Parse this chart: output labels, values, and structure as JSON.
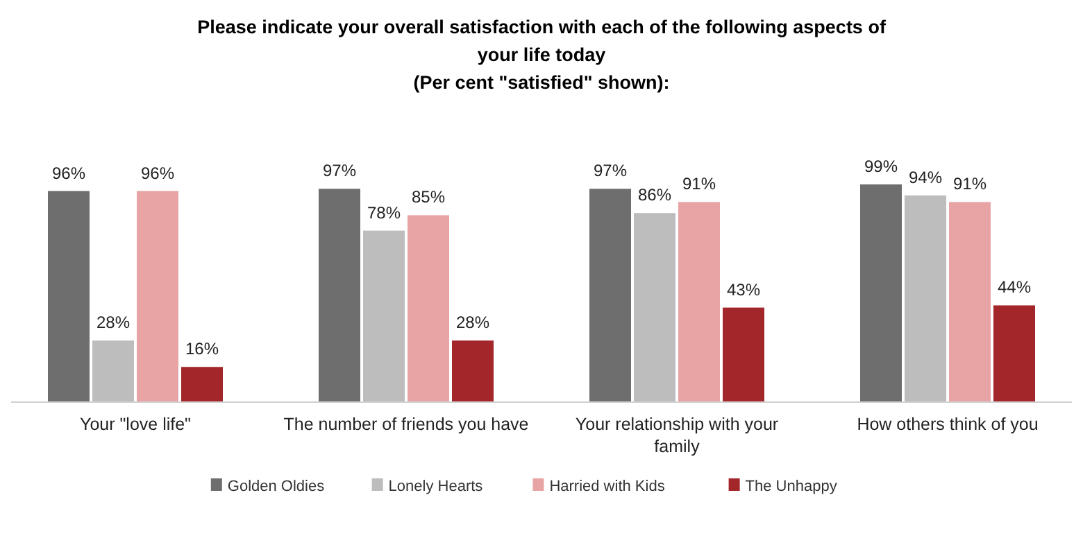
{
  "chart_data": {
    "type": "bar",
    "title": "Please indicate your overall satisfaction with each of the following aspects of your life today",
    "subtitle": "(Per cent \"satisfied\" shown):",
    "categories": [
      "Your \"love life\"",
      "The number of friends you have",
      "Your relationship with your family",
      "How others think of you"
    ],
    "series": [
      {
        "name": "Golden Oldies",
        "color": "#6e6e6e",
        "values": [
          96,
          97,
          97,
          99
        ],
        "value_labels": [
          "96%",
          "97%",
          "97%",
          "99%"
        ]
      },
      {
        "name": "Lonely Hearts",
        "color": "#bdbdbd",
        "values": [
          28,
          78,
          86,
          94
        ],
        "value_labels": [
          "28%",
          "78%",
          "86%",
          "94%"
        ]
      },
      {
        "name": "Harried with Kids",
        "color": "#e8a4a4",
        "values": [
          96,
          85,
          91,
          91
        ],
        "value_labels": [
          "96%",
          "85%",
          "91%",
          "91%"
        ]
      },
      {
        "name": "The Unhappy",
        "color": "#a3262a",
        "values": [
          16,
          28,
          43,
          44
        ],
        "value_labels": [
          "16%",
          "28%",
          "43%",
          "44%"
        ]
      }
    ],
    "legend": "bottom"
  }
}
